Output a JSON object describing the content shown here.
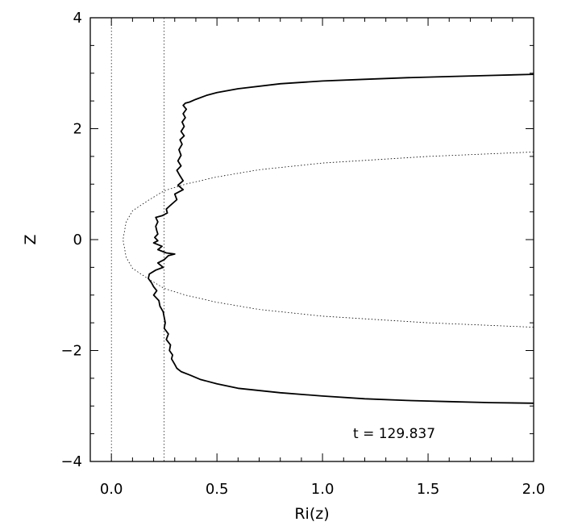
{
  "chart_data": {
    "type": "line",
    "xlabel": "Ri(z)",
    "ylabel": "Z",
    "xlim": [
      -0.1,
      2.0
    ],
    "ylim": [
      -4,
      4
    ],
    "xticks": [
      0.0,
      0.5,
      1.0,
      1.5,
      2.0
    ],
    "xtick_labels": [
      "0.0",
      "0.5",
      "1.0",
      "1.5",
      "2.0"
    ],
    "yticks": [
      -4,
      -2,
      0,
      2,
      4
    ],
    "ytick_labels": [
      "−4",
      "−2",
      "0",
      "2",
      "4"
    ],
    "annotation": "t = 129.837",
    "grid": false,
    "vertical_reference_lines": [
      0.0,
      0.25
    ],
    "series": [
      {
        "style": "solid",
        "color": "#000000",
        "points": [
          [
            2.0,
            2.98
          ],
          [
            1.8,
            2.96
          ],
          [
            1.6,
            2.94
          ],
          [
            1.4,
            2.92
          ],
          [
            1.2,
            2.89
          ],
          [
            1.0,
            2.86
          ],
          [
            0.8,
            2.81
          ],
          [
            0.6,
            2.72
          ],
          [
            0.5,
            2.65
          ],
          [
            0.45,
            2.6
          ],
          [
            0.4,
            2.53
          ],
          [
            0.37,
            2.48
          ],
          [
            0.35,
            2.46
          ],
          [
            0.34,
            2.42
          ],
          [
            0.355,
            2.35
          ],
          [
            0.34,
            2.27
          ],
          [
            0.35,
            2.2
          ],
          [
            0.335,
            2.12
          ],
          [
            0.345,
            2.04
          ],
          [
            0.33,
            1.95
          ],
          [
            0.345,
            1.87
          ],
          [
            0.325,
            1.8
          ],
          [
            0.335,
            1.72
          ],
          [
            0.32,
            1.62
          ],
          [
            0.33,
            1.52
          ],
          [
            0.315,
            1.42
          ],
          [
            0.33,
            1.33
          ],
          [
            0.31,
            1.25
          ],
          [
            0.325,
            1.15
          ],
          [
            0.34,
            1.06
          ],
          [
            0.315,
            0.98
          ],
          [
            0.34,
            0.9
          ],
          [
            0.3,
            0.82
          ],
          [
            0.31,
            0.72
          ],
          [
            0.28,
            0.62
          ],
          [
            0.26,
            0.55
          ],
          [
            0.265,
            0.48
          ],
          [
            0.24,
            0.43
          ],
          [
            0.21,
            0.4
          ],
          [
            0.22,
            0.32
          ],
          [
            0.21,
            0.24
          ],
          [
            0.215,
            0.16
          ],
          [
            0.22,
            0.1
          ],
          [
            0.205,
            0.04
          ],
          [
            0.22,
            -0.02
          ],
          [
            0.2,
            -0.06
          ],
          [
            0.24,
            -0.12
          ],
          [
            0.22,
            -0.18
          ],
          [
            0.26,
            -0.24
          ],
          [
            0.3,
            -0.26
          ],
          [
            0.27,
            -0.29
          ],
          [
            0.25,
            -0.36
          ],
          [
            0.22,
            -0.42
          ],
          [
            0.245,
            -0.5
          ],
          [
            0.21,
            -0.55
          ],
          [
            0.18,
            -0.62
          ],
          [
            0.175,
            -0.7
          ],
          [
            0.19,
            -0.78
          ],
          [
            0.2,
            -0.85
          ],
          [
            0.215,
            -0.92
          ],
          [
            0.2,
            -1.0
          ],
          [
            0.225,
            -1.1
          ],
          [
            0.23,
            -1.2
          ],
          [
            0.245,
            -1.3
          ],
          [
            0.25,
            -1.4
          ],
          [
            0.255,
            -1.5
          ],
          [
            0.25,
            -1.6
          ],
          [
            0.27,
            -1.7
          ],
          [
            0.26,
            -1.8
          ],
          [
            0.28,
            -1.9
          ],
          [
            0.275,
            -2.0
          ],
          [
            0.29,
            -2.08
          ],
          [
            0.285,
            -2.15
          ],
          [
            0.3,
            -2.25
          ],
          [
            0.31,
            -2.32
          ],
          [
            0.33,
            -2.38
          ],
          [
            0.37,
            -2.44
          ],
          [
            0.42,
            -2.52
          ],
          [
            0.5,
            -2.6
          ],
          [
            0.6,
            -2.68
          ],
          [
            0.8,
            -2.76
          ],
          [
            1.0,
            -2.82
          ],
          [
            1.2,
            -2.87
          ],
          [
            1.4,
            -2.9
          ],
          [
            1.6,
            -2.92
          ],
          [
            1.8,
            -2.94
          ],
          [
            2.0,
            -2.95
          ]
        ]
      },
      {
        "style": "dotted",
        "color": "#000000",
        "points": [
          [
            2.0,
            1.58
          ],
          [
            1.5,
            1.5
          ],
          [
            1.0,
            1.38
          ],
          [
            0.7,
            1.26
          ],
          [
            0.5,
            1.13
          ],
          [
            0.35,
            1.0
          ],
          [
            0.25,
            0.88
          ],
          [
            0.18,
            0.72
          ],
          [
            0.1,
            0.52
          ],
          [
            0.07,
            0.32
          ],
          [
            0.055,
            0.0
          ],
          [
            0.07,
            -0.32
          ],
          [
            0.1,
            -0.52
          ],
          [
            0.18,
            -0.72
          ],
          [
            0.25,
            -0.88
          ],
          [
            0.35,
            -1.0
          ],
          [
            0.5,
            -1.13
          ],
          [
            0.7,
            -1.26
          ],
          [
            1.0,
            -1.38
          ],
          [
            1.5,
            -1.5
          ],
          [
            2.0,
            -1.58
          ]
        ]
      }
    ]
  }
}
